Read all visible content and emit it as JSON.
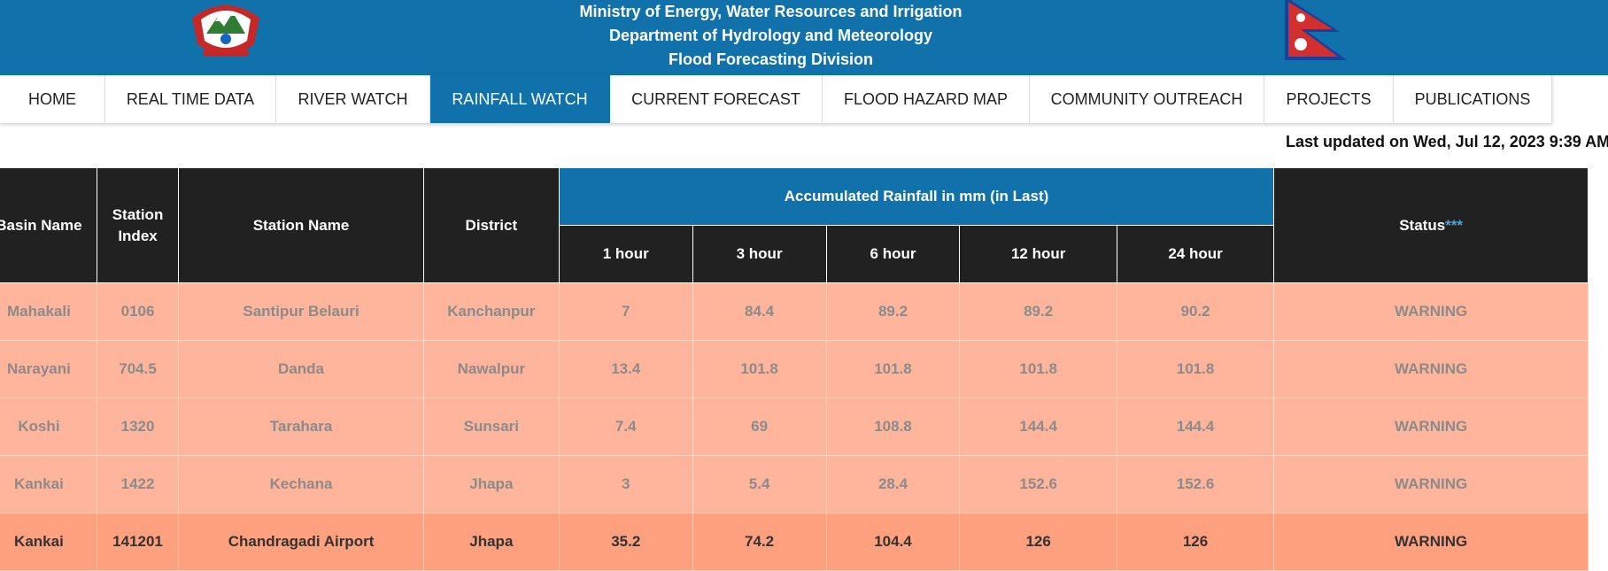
{
  "header": {
    "line1": "Ministry of Energy, Water Resources and Irrigation",
    "line2": "Department of Hydrology and Meteorology",
    "line3": "Flood Forecasting Division",
    "emblem_icon": "nepal-emblem-icon",
    "flag_icon": "nepal-flag-icon",
    "bg_color": "#1172ab"
  },
  "nav": {
    "items": [
      {
        "label": "HOME"
      },
      {
        "label": "REAL TIME DATA"
      },
      {
        "label": "RIVER WATCH"
      },
      {
        "label": "RAINFALL WATCH",
        "active": true
      },
      {
        "label": "CURRENT FORECAST"
      },
      {
        "label": "FLOOD HAZARD MAP"
      },
      {
        "label": "COMMUNITY OUTREACH"
      },
      {
        "label": "PROJECTS"
      },
      {
        "label": "PUBLICATIONS"
      }
    ]
  },
  "last_updated": "Last updated on Wed, Jul 12, 2023 9:39 AM",
  "table": {
    "headers": {
      "basin": "Basin Name",
      "index": "Station Index",
      "station": "Station Name",
      "district": "District",
      "group": "Accumulated Rainfall in mm (in Last)",
      "h1": "1 hour",
      "h3": "3 hour",
      "h6": "6 hour",
      "h12": "12 hour",
      "h24": "24 hour",
      "status": "Status",
      "status_marker": "***"
    },
    "rows": [
      {
        "basin": "Mahakali",
        "index": "0106",
        "station": "Santipur Belauri",
        "district": "Kanchanpur",
        "h1": "7",
        "h3": "84.4",
        "h6": "89.2",
        "h12": "89.2",
        "h24": "90.2",
        "status": "WARNING"
      },
      {
        "basin": "Narayani",
        "index": "704.5",
        "station": "Danda",
        "district": "Nawalpur",
        "h1": "13.4",
        "h3": "101.8",
        "h6": "101.8",
        "h12": "101.8",
        "h24": "101.8",
        "status": "WARNING"
      },
      {
        "basin": "Koshi",
        "index": "1320",
        "station": "Tarahara",
        "district": "Sunsari",
        "h1": "7.4",
        "h3": "69",
        "h6": "108.8",
        "h12": "144.4",
        "h24": "144.4",
        "status": "WARNING"
      },
      {
        "basin": "Kankai",
        "index": "1422",
        "station": "Kechana",
        "district": "Jhapa",
        "h1": "3",
        "h3": "5.4",
        "h6": "28.4",
        "h12": "152.6",
        "h24": "152.6",
        "status": "WARNING"
      },
      {
        "basin": "Kankai",
        "index": "141201",
        "station": "Chandragadi Airport",
        "district": "Jhapa",
        "h1": "35.2",
        "h3": "74.2",
        "h6": "104.4",
        "h12": "126",
        "h24": "126",
        "status": "WARNING"
      }
    ]
  },
  "colors": {
    "accent": "#1172ab",
    "header_dark": "#212121",
    "warning_row": "#ffb59b",
    "warning_row_strong": "#ffa07f"
  }
}
